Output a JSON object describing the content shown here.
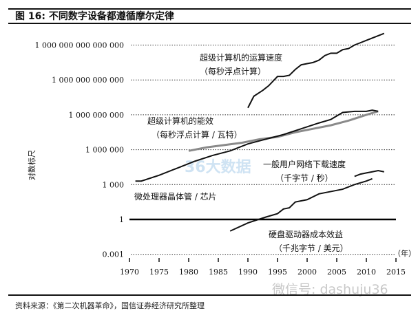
{
  "header": {
    "title": "图  16:  不同数字设备都遵循摩尔定律"
  },
  "footer": {
    "source": "资料来源：《第二次机器革命》，国信证券经济研究所整理",
    "watermark": "微信号: dashuju36",
    "logo_watermark": "36大数据"
  },
  "chart_data": {
    "type": "line",
    "title": "不同数字设备都遵循摩尔定律",
    "xlabel": "（年）",
    "ylabel": "对数标尺",
    "xlim": [
      1970,
      2015
    ],
    "ylim_log10": [
      -3,
      15
    ],
    "y_scale": "log",
    "grid": "dotted horizontal",
    "x_ticks": [
      "1970",
      "1975",
      "1980",
      "1985",
      "1990",
      "1995",
      "2000",
      "2005",
      "2010",
      "2015"
    ],
    "y_ticks": [
      {
        "log": 15,
        "label": "1 000 000 000 000 000"
      },
      {
        "log": 12,
        "label": "1 000 000 000 000"
      },
      {
        "log": 9,
        "label": "1 000 000 000"
      },
      {
        "log": 6,
        "label": "1 000 000"
      },
      {
        "log": 3,
        "label": "1 000"
      },
      {
        "log": 0,
        "label": "1"
      },
      {
        "log": -3,
        "label": "0.001"
      }
    ],
    "series": [
      {
        "name": "超级计算机的运算速度",
        "unit": "（每秒浮点计算）",
        "color": "#111111",
        "x": [
          1990,
          1991,
          1992.5,
          1993.5,
          1995,
          1996,
          1997,
          1998,
          1999,
          2000,
          2001,
          2002,
          2003,
          2004,
          2005,
          2006,
          2007,
          2008,
          2009,
          2010,
          2011,
          2012,
          2013
        ],
        "log10": [
          9.6,
          10.6,
          11.1,
          11.5,
          12.3,
          12.3,
          12.4,
          12.9,
          13.3,
          13.4,
          13.5,
          13.7,
          14.1,
          14.3,
          14.3,
          14.6,
          14.7,
          15.0,
          15.2,
          15.4,
          15.6,
          15.8,
          16.0
        ]
      },
      {
        "name": "超级计算机的能效",
        "unit": "（每秒浮点计算 / 瓦特）",
        "color": "#8a8a8a",
        "x": [
          1980,
          1983,
          1986,
          1989,
          1992,
          1995,
          1998,
          2001,
          2004,
          2007,
          2010,
          2012
        ],
        "log10": [
          5.9,
          6.2,
          6.4,
          6.6,
          6.9,
          7.1,
          7.5,
          7.8,
          8.1,
          8.5,
          9.0,
          9.3
        ]
      },
      {
        "name": "微处理器晶体管 / 芯片",
        "unit": "",
        "color": "#111111",
        "x": [
          1971,
          1972,
          1975,
          1978,
          1981,
          1984,
          1987,
          1990,
          1993,
          1996,
          1999,
          2002,
          2004,
          2006,
          2008,
          2010,
          2011,
          2012
        ],
        "log10": [
          3.3,
          3.3,
          3.8,
          4.4,
          5.0,
          5.5,
          5.9,
          6.5,
          6.9,
          7.3,
          7.8,
          8.3,
          8.6,
          9.2,
          9.3,
          9.3,
          9.4,
          9.3
        ]
      },
      {
        "name": "一般用户网络下载速度",
        "unit": "（千字节 / 秒）",
        "color": "#111111",
        "x": [
          2008,
          2009,
          2010,
          2011,
          2012,
          2013
        ],
        "log10": [
          3.7,
          3.9,
          4.0,
          4.1,
          4.2,
          4.1
        ]
      },
      {
        "name": "硬盘驱动器成本效益",
        "unit": "（千兆字节 / 美元）",
        "color": "#111111",
        "x": [
          1987,
          1990,
          1993,
          1995,
          1996,
          1997,
          1998,
          2000,
          2002,
          2004,
          2006,
          2008,
          2010,
          2011
        ],
        "log10": [
          -1.0,
          -0.3,
          0.2,
          0.5,
          0.9,
          1.0,
          1.5,
          1.7,
          2.2,
          2.4,
          2.6,
          3.0,
          3.3,
          3.5
        ]
      }
    ]
  }
}
